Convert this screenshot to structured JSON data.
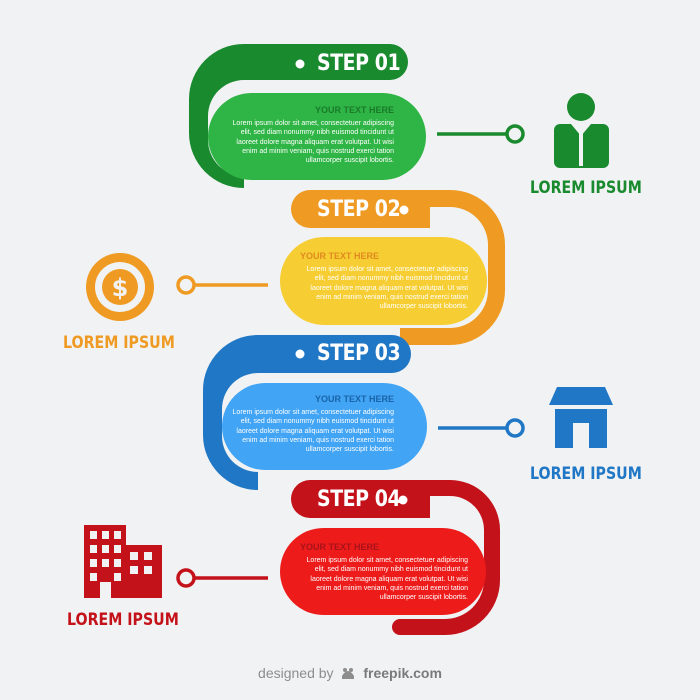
{
  "colors": {
    "background": "#f1f2f3",
    "green": "#1a8a2e",
    "green_light": "#2fb545",
    "orange": "#ef9a22",
    "yellow": "#f6ce33",
    "blue": "#1f77c5",
    "blue_light": "#41a4f4",
    "red": "#c4121a",
    "red_light": "#ee1b1b"
  },
  "steps": [
    {
      "label": "STEP 01",
      "heading": "YOUR TEXT HERE",
      "body": "Lorem ipsum dolor sit amet, consectetuer adipiscing elit, sed diam nonummy nibh euismod tincidunt ut laoreet dolore magna aliquam erat volutpat. Ut wisi enim ad minim veniam, quis nostrud exerci tation ullamcorper suscipit lobortis.",
      "caption": "LOREM IPSUM",
      "icon": "businessman-icon"
    },
    {
      "label": "STEP 02",
      "heading": "YOUR TEXT HERE",
      "body": "Lorem ipsum dolor sit amet, consectetuer adipiscing elit, sed diam nonummy nibh euismod tincidunt ut laoreet dolore magna aliquam erat volutpat. Ut wisi enim ad minim veniam, quis nostrud exerci tation ullamcorper suscipit lobortis.",
      "caption": "LOREM IPSUM",
      "icon": "dollar-coin-icon"
    },
    {
      "label": "STEP 03",
      "heading": "YOUR TEXT HERE",
      "body": "Lorem ipsum dolor sit amet, consectetuer adipiscing elit, sed diam nonummy nibh euismod tincidunt ut laoreet dolore magna aliquam erat volutpat. Ut wisi enim ad minim veniam, quis nostrud exerci tation ullamcorper suscipit lobortis.",
      "caption": "LOREM IPSUM",
      "icon": "store-icon"
    },
    {
      "label": "STEP 04",
      "heading": "YOUR TEXT HERE",
      "body": "Lorem ipsum dolor sit amet, consectetuer adipiscing elit, sed diam nonummy nibh euismod tincidunt ut laoreet dolore magna aliquam erat volutpat. Ut wisi enim ad minim veniam, quis nostrud exerci tation ullamcorper suscipit lobortis.",
      "caption": "LOREM IPSUM",
      "icon": "buildings-icon"
    }
  ],
  "footer": {
    "prefix": "designed by",
    "brand": "freepik.com",
    "logo_icon": "freepik-logo-icon"
  }
}
